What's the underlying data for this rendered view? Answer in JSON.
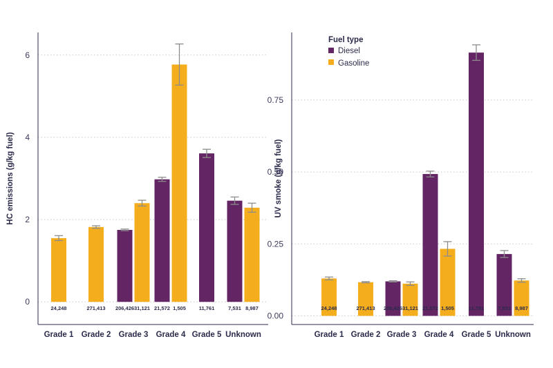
{
  "colors": {
    "diesel": "#632564",
    "gasoline": "#f4ae1d",
    "errorbar": "#8c8c8c",
    "axis": "#2a2a4a",
    "grid": "#c8c8c8"
  },
  "legend": {
    "title": "Fuel type",
    "entries": [
      {
        "name": "Diesel",
        "color_key": "diesel"
      },
      {
        "name": "Gasoline",
        "color_key": "gasoline"
      }
    ]
  },
  "chart_data": [
    {
      "type": "bar",
      "ylabel": "HC emissions (g/kg fuel)",
      "xlabel": "",
      "ylim": [
        -0.55,
        6.55
      ],
      "yticks": [
        {
          "value": 0,
          "label": "0"
        },
        {
          "value": 2,
          "label": "2"
        },
        {
          "value": 4,
          "label": "4"
        },
        {
          "value": 6,
          "label": "6"
        }
      ],
      "categories": [
        "Grade 1",
        "Grade 2",
        "Grade 3",
        "Grade 4",
        "Grade 5",
        "Unknown"
      ],
      "series": [
        {
          "name": "Diesel",
          "color_key": "diesel",
          "values": [
            null,
            null,
            1.75,
            2.98,
            3.61,
            2.46
          ],
          "err_low": [
            null,
            null,
            1.73,
            2.93,
            3.51,
            2.37
          ],
          "err_high": [
            null,
            null,
            1.77,
            3.03,
            3.71,
            2.55
          ],
          "counts": [
            null,
            null,
            "206,426",
            "21,572",
            "11,761",
            "7,531"
          ]
        },
        {
          "name": "Gasoline",
          "color_key": "gasoline",
          "values": [
            1.55,
            1.82,
            2.4,
            5.77,
            null,
            2.29
          ],
          "err_low": [
            1.49,
            1.79,
            2.33,
            5.27,
            null,
            2.18
          ],
          "err_high": [
            1.61,
            1.85,
            2.47,
            6.27,
            null,
            2.4
          ],
          "counts": [
            "24,248",
            "271,413",
            "31,121",
            "1,505",
            null,
            "8,987"
          ]
        }
      ]
    },
    {
      "type": "bar",
      "ylabel": "UV smoke (g/kg fuel)",
      "xlabel": "",
      "ylim": [
        -0.03,
        0.985
      ],
      "yticks": [
        {
          "value": 0,
          "label": "0.00"
        },
        {
          "value": 0.25,
          "label": "0.25"
        },
        {
          "value": 0.5,
          "label": "0.50"
        },
        {
          "value": 0.75,
          "label": "0.75"
        }
      ],
      "categories": [
        "Grade 1",
        "Grade 2",
        "Grade 3",
        "Grade 4",
        "Grade 5",
        "Unknown"
      ],
      "series": [
        {
          "name": "Diesel",
          "color_key": "diesel",
          "values": [
            null,
            null,
            0.12,
            0.493,
            0.915,
            0.215
          ],
          "err_low": [
            null,
            null,
            0.118,
            0.483,
            0.888,
            0.203
          ],
          "err_high": [
            null,
            null,
            0.122,
            0.503,
            0.942,
            0.227
          ],
          "counts": [
            null,
            null,
            "206,426",
            "21,572",
            "11,761",
            "7,531"
          ]
        },
        {
          "name": "Gasoline",
          "color_key": "gasoline",
          "values": [
            0.13,
            0.117,
            0.112,
            0.233,
            null,
            0.123
          ],
          "err_low": [
            0.125,
            0.115,
            0.106,
            0.208,
            null,
            0.117
          ],
          "err_high": [
            0.135,
            0.119,
            0.118,
            0.258,
            null,
            0.129
          ],
          "counts": [
            "24,248",
            "271,413",
            "31,121",
            "1,505",
            null,
            "8,987"
          ]
        }
      ]
    }
  ]
}
